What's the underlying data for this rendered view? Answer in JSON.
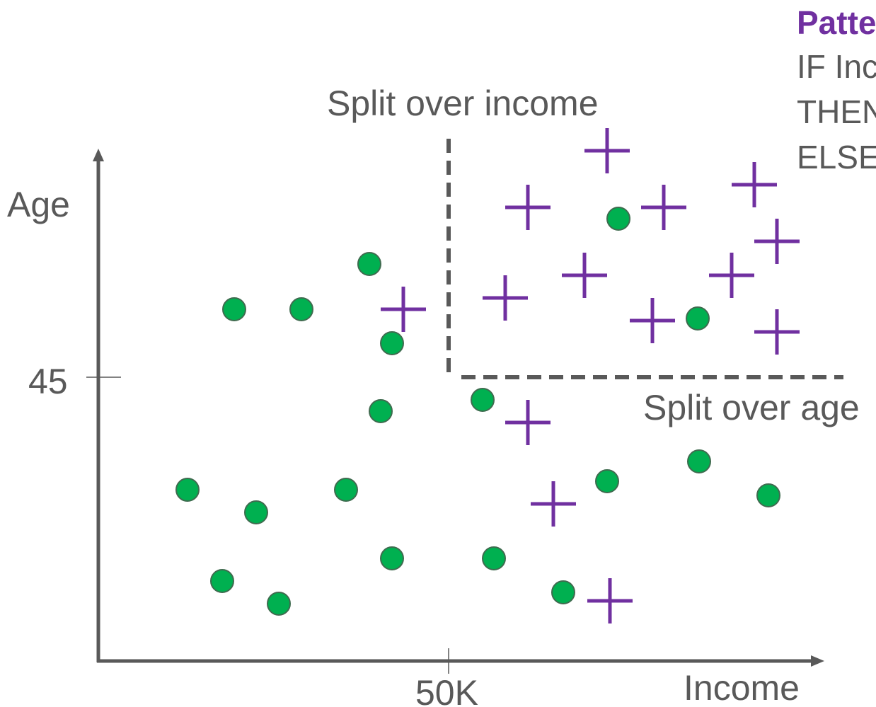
{
  "axes": {
    "x_label": "Income",
    "y_label": "Age",
    "x_tick_label": "50K",
    "y_tick_label": "45"
  },
  "annotations": {
    "split_income": "Split over income",
    "split_age": "Split over age"
  },
  "pattern_box": {
    "title": "Patte",
    "lines": [
      "IF Inc",
      "THEN",
      "ELSE"
    ]
  },
  "colors": {
    "axis": "#595959",
    "green_marker": "#00b050",
    "green_outline": "#3f6b4f",
    "purple_marker": "#7030a0"
  },
  "markers": {
    "circles": [
      [
        331,
        437
      ],
      [
        426,
        437
      ],
      [
        522,
        373
      ],
      [
        554,
        485
      ],
      [
        538,
        581
      ],
      [
        265,
        692
      ],
      [
        362,
        724
      ],
      [
        489,
        692
      ],
      [
        554,
        789
      ],
      [
        314,
        821
      ],
      [
        394,
        853
      ],
      [
        682,
        565
      ],
      [
        698,
        789
      ],
      [
        796,
        837
      ],
      [
        858,
        680
      ],
      [
        988,
        652
      ],
      [
        1086,
        700
      ],
      [
        874,
        309
      ],
      [
        986,
        450
      ]
    ],
    "crosses": [
      [
        570,
        437
      ],
      [
        858,
        213
      ],
      [
        746,
        293
      ],
      [
        938,
        293
      ],
      [
        1066,
        261
      ],
      [
        1098,
        341
      ],
      [
        714,
        421
      ],
      [
        826,
        389
      ],
      [
        1034,
        389
      ],
      [
        922,
        453
      ],
      [
        1098,
        469
      ],
      [
        746,
        597
      ],
      [
        782,
        712
      ],
      [
        862,
        849
      ]
    ]
  }
}
